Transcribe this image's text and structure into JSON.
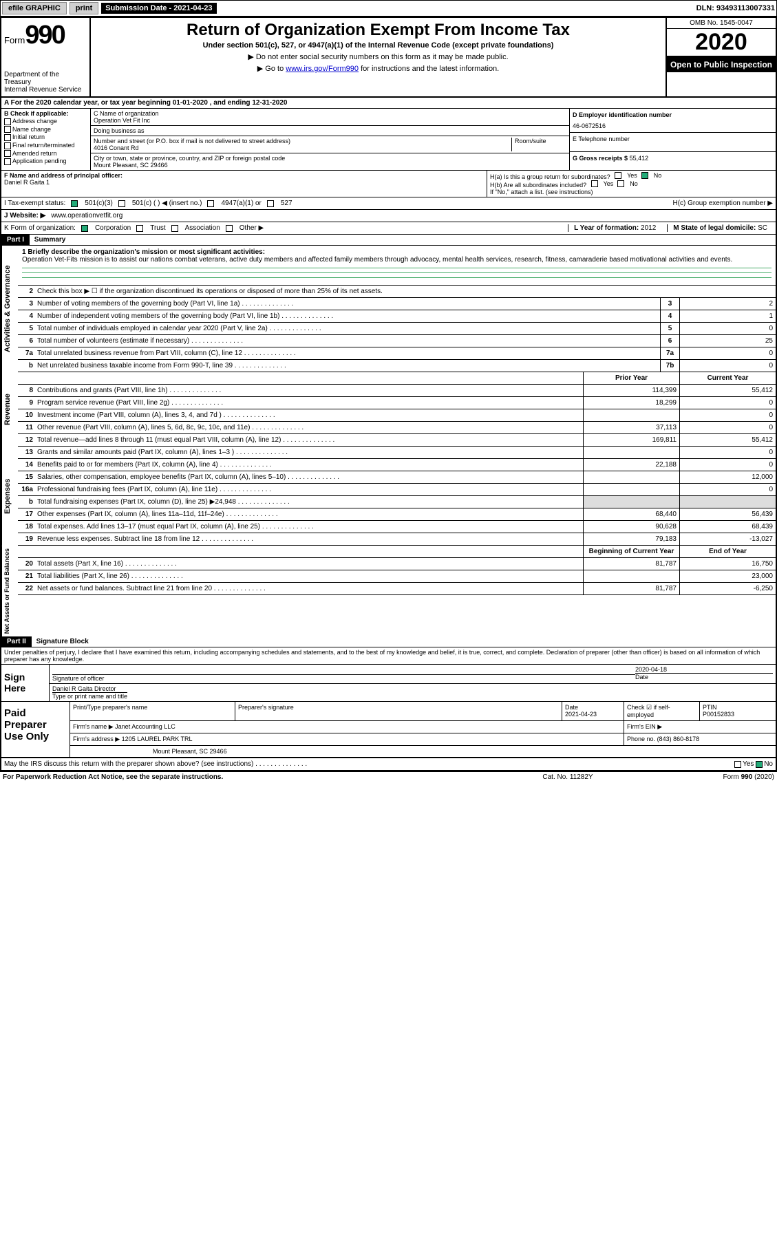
{
  "colors": {
    "border": "#000000",
    "link": "#0000cc",
    "shade": "#dddddd",
    "rule_green": "#44aa66"
  },
  "topbar": {
    "efile": "efile GRAPHIC",
    "print": "print",
    "submission_label": "Submission Date - 2021-04-23",
    "dln": "DLN: 93493113007331"
  },
  "header": {
    "form_word": "Form",
    "form_num": "990",
    "dept": "Department of the Treasury",
    "irs": "Internal Revenue Service",
    "title": "Return of Organization Exempt From Income Tax",
    "subtitle": "Under section 501(c), 527, or 4947(a)(1) of the Internal Revenue Code (except private foundations)",
    "note1": "▶ Do not enter social security numbers on this form as it may be made public.",
    "note2_pre": "▶ Go to ",
    "note2_link": "www.irs.gov/Form990",
    "note2_post": " for instructions and the latest information.",
    "omb": "OMB No. 1545-0047",
    "year": "2020",
    "open": "Open to Public Inspection"
  },
  "rowA": "A  For the 2020 calendar year, or tax year beginning 01-01-2020    , and ending 12-31-2020",
  "sectionB": {
    "label": "B Check if applicable:",
    "opts": [
      "Address change",
      "Name change",
      "Initial return",
      "Final return/terminated",
      "Amended return",
      "Application pending"
    ]
  },
  "sectionC": {
    "name_lbl": "C Name of organization",
    "name": "Operation Vet Fit Inc",
    "dba_lbl": "Doing business as",
    "dba": "",
    "street_lbl": "Number and street (or P.O. box if mail is not delivered to street address)",
    "room_lbl": "Room/suite",
    "street": "4016 Conant Rd",
    "city_lbl": "City or town, state or province, country, and ZIP or foreign postal code",
    "city": "Mount Pleasant, SC  29466"
  },
  "sectionD": {
    "lbl": "D Employer identification number",
    "val": "46-0672516"
  },
  "sectionE": {
    "lbl": "E Telephone number",
    "val": ""
  },
  "sectionG": {
    "lbl": "G Gross receipts $",
    "val": "55,412"
  },
  "sectionF": {
    "lbl": "F  Name and address of principal officer:",
    "val": "Daniel R Gaita 1"
  },
  "sectionH": {
    "a": "H(a)  Is this a group return for subordinates?",
    "a_yes": "Yes",
    "a_no": "No",
    "a_checked": "no",
    "b": "H(b)  Are all subordinates included?",
    "b_yes": "Yes",
    "b_no": "No",
    "b_note": "If \"No,\" attach a list. (see instructions)",
    "c": "H(c)  Group exemption number ▶"
  },
  "rowI": {
    "lbl": "I   Tax-exempt status:",
    "o1": "501(c)(3)",
    "o1_ck": true,
    "o2": "501(c) (   ) ◀ (insert no.)",
    "o3": "4947(a)(1) or",
    "o4": "527"
  },
  "rowJ": {
    "lbl": "J   Website: ▶",
    "val": "www.operationvetfit.org"
  },
  "rowK": {
    "lbl": "K Form of organization:",
    "corp": "Corporation",
    "corp_ck": true,
    "trust": "Trust",
    "assoc": "Association",
    "other": "Other ▶"
  },
  "rowL": {
    "lbl": "L Year of formation:",
    "val": "2012"
  },
  "rowM": {
    "lbl": "M State of legal domicile:",
    "val": "SC"
  },
  "part1": {
    "hdr": "Part I",
    "title": "Summary"
  },
  "mission": {
    "lbl": "1  Briefly describe the organization's mission or most significant activities:",
    "txt": "Operation Vet-Fits mission is to assist our nations combat veterans, active duty members and affected family members through advocacy, mental health services, research, fitness, camaraderie based motivational activities and events."
  },
  "gov": {
    "side": "Activities & Governance",
    "l2": "Check this box ▶ ☐  if the organization discontinued its operations or disposed of more than 25% of its net assets.",
    "lines": [
      {
        "n": "3",
        "t": "Number of voting members of the governing body (Part VI, line 1a)",
        "b": "3",
        "v": "2"
      },
      {
        "n": "4",
        "t": "Number of independent voting members of the governing body (Part VI, line 1b)",
        "b": "4",
        "v": "1"
      },
      {
        "n": "5",
        "t": "Total number of individuals employed in calendar year 2020 (Part V, line 2a)",
        "b": "5",
        "v": "0"
      },
      {
        "n": "6",
        "t": "Total number of volunteers (estimate if necessary)",
        "b": "6",
        "v": "25"
      },
      {
        "n": "7a",
        "t": "Total unrelated business revenue from Part VIII, column (C), line 12",
        "b": "7a",
        "v": "0"
      },
      {
        "n": "b",
        "t": "Net unrelated business taxable income from Form 990-T, line 39",
        "b": "7b",
        "v": "0"
      }
    ]
  },
  "rev": {
    "side": "Revenue",
    "hdr_prior": "Prior Year",
    "hdr_curr": "Current Year",
    "lines": [
      {
        "n": "8",
        "t": "Contributions and grants (Part VIII, line 1h)",
        "p": "114,399",
        "c": "55,412"
      },
      {
        "n": "9",
        "t": "Program service revenue (Part VIII, line 2g)",
        "p": "18,299",
        "c": "0"
      },
      {
        "n": "10",
        "t": "Investment income (Part VIII, column (A), lines 3, 4, and 7d )",
        "p": "",
        "c": "0"
      },
      {
        "n": "11",
        "t": "Other revenue (Part VIII, column (A), lines 5, 6d, 8c, 9c, 10c, and 11e)",
        "p": "37,113",
        "c": "0"
      },
      {
        "n": "12",
        "t": "Total revenue—add lines 8 through 11 (must equal Part VIII, column (A), line 12)",
        "p": "169,811",
        "c": "55,412"
      }
    ]
  },
  "exp": {
    "side": "Expenses",
    "lines": [
      {
        "n": "13",
        "t": "Grants and similar amounts paid (Part IX, column (A), lines 1–3 )",
        "p": "",
        "c": "0"
      },
      {
        "n": "14",
        "t": "Benefits paid to or for members (Part IX, column (A), line 4)",
        "p": "22,188",
        "c": "0"
      },
      {
        "n": "15",
        "t": "Salaries, other compensation, employee benefits (Part IX, column (A), lines 5–10)",
        "p": "",
        "c": "12,000"
      },
      {
        "n": "16a",
        "t": "Professional fundraising fees (Part IX, column (A), line 11e)",
        "p": "",
        "c": "0"
      },
      {
        "n": "b",
        "t": "Total fundraising expenses (Part IX, column (D), line 25) ▶24,948",
        "p": "shade",
        "c": "shade"
      },
      {
        "n": "17",
        "t": "Other expenses (Part IX, column (A), lines 11a–11d, 11f–24e)",
        "p": "68,440",
        "c": "56,439"
      },
      {
        "n": "18",
        "t": "Total expenses. Add lines 13–17 (must equal Part IX, column (A), line 25)",
        "p": "90,628",
        "c": "68,439"
      },
      {
        "n": "19",
        "t": "Revenue less expenses. Subtract line 18 from line 12",
        "p": "79,183",
        "c": "-13,027"
      }
    ]
  },
  "net": {
    "side": "Net Assets or Fund Balances",
    "hdr_beg": "Beginning of Current Year",
    "hdr_end": "End of Year",
    "lines": [
      {
        "n": "20",
        "t": "Total assets (Part X, line 16)",
        "p": "81,787",
        "c": "16,750"
      },
      {
        "n": "21",
        "t": "Total liabilities (Part X, line 26)",
        "p": "",
        "c": "23,000"
      },
      {
        "n": "22",
        "t": "Net assets or fund balances. Subtract line 21 from line 20",
        "p": "81,787",
        "c": "-6,250"
      }
    ]
  },
  "part2": {
    "hdr": "Part II",
    "title": "Signature Block"
  },
  "penalty": "Under penalties of perjury, I declare that I have examined this return, including accompanying schedules and statements, and to the best of my knowledge and belief, it is true, correct, and complete. Declaration of preparer (other than officer) is based on all information of which preparer has any knowledge.",
  "sign": {
    "side": "Sign Here",
    "sig_lbl": "Signature of officer",
    "date_lbl": "Date",
    "date": "2020-04-18",
    "name": "Daniel R Gaita  Director",
    "name_lbl": "Type or print name and title"
  },
  "paid": {
    "side": "Paid Preparer Use Only",
    "r1": {
      "c1": "Print/Type preparer's name",
      "c2": "Preparer's signature",
      "c3": "Date",
      "c3v": "2021-04-23",
      "c4": "Check ☑ if self-employed",
      "c5": "PTIN",
      "c5v": "P00152833"
    },
    "r2": {
      "c1": "Firm's name    ▶",
      "c1v": "Janet Accounting LLC",
      "c2": "Firm's EIN ▶"
    },
    "r3": {
      "c1": "Firm's address ▶",
      "c1v": "1205 LAUREL PARK TRL",
      "c2": "Phone no.",
      "c2v": "(843) 860-8178"
    },
    "r4": "Mount Pleasant, SC  29466"
  },
  "discuss": {
    "t": "May the IRS discuss this return with the preparer shown above? (see instructions)",
    "yes": "Yes",
    "no": "No",
    "checked": "no"
  },
  "footer": {
    "l": "For Paperwork Reduction Act Notice, see the separate instructions.",
    "m": "Cat. No. 11282Y",
    "r": "Form 990 (2020)"
  }
}
